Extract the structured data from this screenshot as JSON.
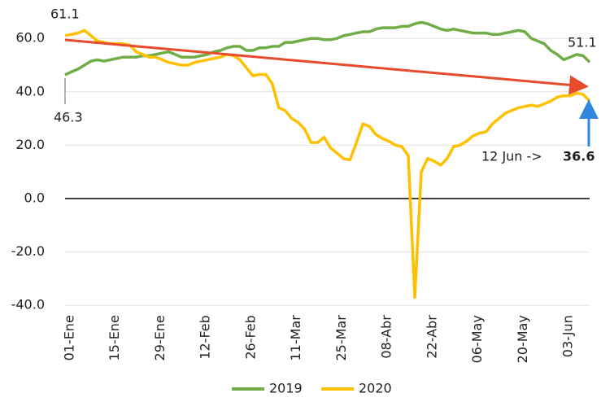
{
  "chart_data": {
    "type": "line",
    "categories": [
      "01-Ene",
      null,
      null,
      null,
      null,
      null,
      null,
      "15-Ene",
      null,
      null,
      null,
      null,
      null,
      null,
      "29-Ene",
      null,
      null,
      null,
      null,
      null,
      null,
      "12-Feb",
      null,
      null,
      null,
      null,
      null,
      null,
      "26-Feb",
      null,
      null,
      null,
      null,
      null,
      null,
      "11-Mar",
      null,
      null,
      null,
      null,
      null,
      null,
      "25-Mar",
      null,
      null,
      null,
      null,
      null,
      null,
      "08-Abr",
      null,
      null,
      null,
      null,
      null,
      null,
      "22-Abr",
      null,
      null,
      null,
      null,
      null,
      null,
      "06-May",
      null,
      null,
      null,
      null,
      null,
      null,
      "20-May",
      null,
      null,
      null,
      null,
      null,
      null,
      "03-Jun",
      null,
      null,
      null,
      null
    ],
    "series": [
      {
        "name": "2019",
        "color": "#70ad47",
        "values": [
          46.3,
          47.5,
          48.5,
          50,
          51.5,
          52,
          51.5,
          52,
          52.5,
          53,
          53,
          53,
          53.5,
          53.5,
          54,
          54.5,
          55,
          54,
          53,
          53,
          53,
          53.5,
          54,
          55,
          55.5,
          56.5,
          57,
          57,
          55.5,
          55.5,
          56.5,
          56.5,
          57,
          57,
          58.5,
          58.5,
          59,
          59.5,
          60,
          60,
          59.5,
          59.5,
          60,
          61,
          61.5,
          62,
          62.5,
          62.5,
          63.5,
          64,
          64,
          64,
          64.5,
          64.5,
          65.5,
          66,
          65.5,
          64.5,
          63.5,
          63,
          63.5,
          63,
          62.5,
          62,
          62,
          62,
          61.5,
          61.5,
          62,
          62.5,
          63,
          62.5,
          60,
          59,
          58,
          55.5,
          54,
          52,
          53,
          54,
          53.5,
          51.1
        ]
      },
      {
        "name": "2020",
        "color": "#ffc000",
        "values": [
          61.1,
          61.5,
          62,
          63,
          61,
          59,
          58.5,
          58,
          58,
          58,
          57.5,
          55,
          54,
          53,
          53,
          52,
          51,
          50.5,
          50,
          50,
          51,
          51.5,
          52,
          52.5,
          53,
          54,
          53.5,
          52,
          49,
          46,
          46.5,
          46.5,
          43,
          34,
          33,
          30,
          28.5,
          26,
          21,
          21,
          23,
          19,
          17,
          15,
          14.5,
          21,
          28,
          27,
          24,
          22.5,
          21.5,
          20,
          19.5,
          16,
          -37,
          10,
          15,
          14,
          12.5,
          15,
          19.5,
          20,
          21.5,
          23.5,
          24.5,
          25,
          28,
          30,
          32,
          33,
          34,
          34.5,
          35,
          34.5,
          35.5,
          36.5,
          38,
          38.5,
          38.5,
          39.5,
          39,
          36.6
        ]
      }
    ],
    "ylim": [
      -40,
      66
    ],
    "yticks": [
      {
        "value": -40,
        "label": "-40.0"
      },
      {
        "value": -20,
        "label": "-20.0"
      },
      {
        "value": 0,
        "label": "0.0"
      },
      {
        "value": 20,
        "label": "20.0"
      },
      {
        "value": 40,
        "label": "40.0"
      },
      {
        "value": 60,
        "label": "60.0"
      }
    ],
    "grid": true,
    "legend": "bottom",
    "annotations": [
      "61.1",
      "46.3",
      "51.1",
      "12 Jun ->",
      "36.6"
    ]
  }
}
